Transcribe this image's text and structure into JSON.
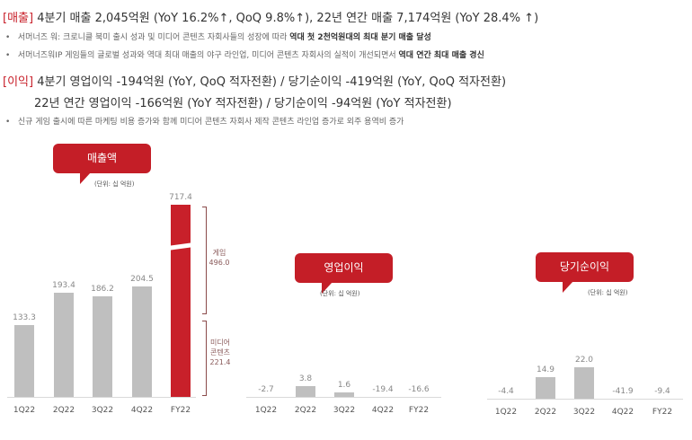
{
  "revenue": {
    "tag": "[매출]",
    "headline": " 4분기 매출 2,045억원 (YoY 16.2%↑, QoQ 9.8%↑), 22년 연간 매출 7,174억원 (YoY 28.4% ↑)",
    "bullets": [
      {
        "text": "서머너즈 워: 크로니클 북미 출시 성과 및 미디어 콘텐츠 자회사들의 성장에 따라 ",
        "bold": "역대 첫 2천억원대의 최대 분기 매출 달성"
      },
      {
        "text": "서머너즈워IP 게임들의 글로벌 성과와 역대 최대 매출의 야구 라인업, 미디어 콘텐츠 자회사의 실적이 개선되면서 ",
        "bold": "역대 연간 최대 매출 경신"
      }
    ]
  },
  "profit": {
    "tag": "[이익]",
    "headline": " 4분기 영업이익 -194억원 (YoY, QoQ 적자전환) / 당기순이익 -419억원 (YoY, QoQ 적자전환)",
    "headline2": "22년 연간 영업이익 -166억원 (YoY 적자전환) / 당기순이익 -94억원 (YoY 적자전환)",
    "bullets": [
      {
        "text": "신규 게임 출시에 따른 마케팅 비용 증가와 함께 미디어 콘텐츠 자회사 제작 콘텐츠 라인업 증가로 외주 용역비 증가"
      }
    ]
  },
  "bullet_mark": "•",
  "chart_data": [
    {
      "type": "bar",
      "title": "매출액",
      "unit": "(단위: 십 억원)",
      "categories": [
        "1Q22",
        "2Q22",
        "3Q22",
        "4Q22",
        "FY22"
      ],
      "values": [
        133.3,
        193.4,
        186.2,
        204.5,
        717.4
      ],
      "value_labels": [
        "133.3",
        "193.4",
        "186.2",
        "204.5",
        "717.4"
      ],
      "highlight_color": "#c8202a",
      "bar_color": "#bfbfbf",
      "breakdown": [
        {
          "label": "게임",
          "value": "496.0"
        },
        {
          "label": "미디어 콘텐츠",
          "value": "221.4"
        }
      ],
      "axis_break": "FY22"
    },
    {
      "type": "bar",
      "title": "영업이익",
      "unit": "(단위: 십 억원)",
      "categories": [
        "1Q22",
        "2Q22",
        "3Q22",
        "4Q22",
        "FY22"
      ],
      "values": [
        -2.7,
        3.8,
        1.6,
        -19.4,
        -16.6
      ],
      "value_labels": [
        "-2.7",
        "3.8",
        "1.6",
        "-19.4",
        "-16.6"
      ]
    },
    {
      "type": "bar",
      "title": "당기순이익",
      "unit": "(단위: 십 억원)",
      "categories": [
        "1Q22",
        "2Q22",
        "3Q22",
        "4Q22",
        "FY22"
      ],
      "values": [
        -4.4,
        14.9,
        22.0,
        -41.9,
        -9.4
      ],
      "value_labels": [
        "-4.4",
        "14.9",
        "22.0",
        "-41.9",
        "-9.4"
      ]
    }
  ]
}
